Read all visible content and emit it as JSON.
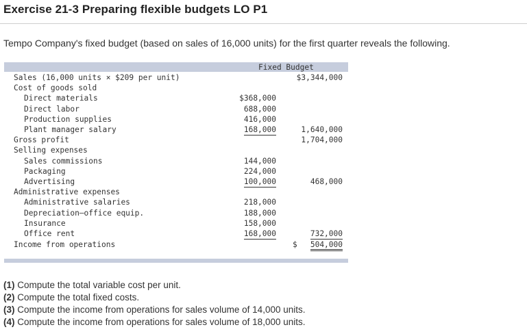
{
  "exercise_title": "Exercise 21-3 Preparing flexible budgets LO P1",
  "intro": "Tempo Company's fixed budget (based on sales of 16,000 units) for the first quarter reveals the following.",
  "table": {
    "header": "Fixed Budget",
    "rows": [
      {
        "label": "Sales (16,000 units × $209 per unit)",
        "indent": 0,
        "col1": "",
        "col2": "$3,344,000"
      },
      {
        "label": "Cost of goods sold",
        "indent": 0,
        "col1": "",
        "col2": ""
      },
      {
        "label": "Direct materials",
        "indent": 1,
        "col1": "$368,000",
        "col2": ""
      },
      {
        "label": "Direct labor",
        "indent": 1,
        "col1": "688,000",
        "col2": ""
      },
      {
        "label": "Production supplies",
        "indent": 1,
        "col1": "416,000",
        "col2": ""
      },
      {
        "label": "Plant manager salary",
        "indent": 1,
        "col1": "168,000",
        "col2": "1,640,000"
      },
      {
        "label": "Gross profit",
        "indent": 0,
        "col1": "",
        "col2": "1,704,000"
      },
      {
        "label": "Selling expenses",
        "indent": 0,
        "col1": "",
        "col2": ""
      },
      {
        "label": "Sales commissions",
        "indent": 1,
        "col1": "144,000",
        "col2": ""
      },
      {
        "label": "Packaging",
        "indent": 1,
        "col1": "224,000",
        "col2": ""
      },
      {
        "label": "Advertising",
        "indent": 1,
        "col1": "100,000",
        "col2": "468,000"
      },
      {
        "label": "Administrative expenses",
        "indent": 0,
        "col1": "",
        "col2": ""
      },
      {
        "label": "Administrative salaries",
        "indent": 1,
        "col1": "218,000",
        "col2": ""
      },
      {
        "label": "Depreciation—office equip.",
        "indent": 1,
        "col1": "188,000",
        "col2": ""
      },
      {
        "label": "Insurance",
        "indent": 1,
        "col1": "158,000",
        "col2": ""
      },
      {
        "label": "Office rent",
        "indent": 1,
        "col1": "168,000",
        "col2": "732,000"
      }
    ],
    "total": {
      "label": "Income from operations",
      "currency": "$",
      "value": "504,000"
    }
  },
  "questions": [
    {
      "num": "(1)",
      "text": "Compute the total variable cost per unit."
    },
    {
      "num": "(2)",
      "text": "Compute the total fixed costs."
    },
    {
      "num": "(3)",
      "text": "Compute the income from operations for sales volume of 14,000 units."
    },
    {
      "num": "(4)",
      "text": "Compute the income from operations for sales volume of 18,000 units."
    }
  ]
}
